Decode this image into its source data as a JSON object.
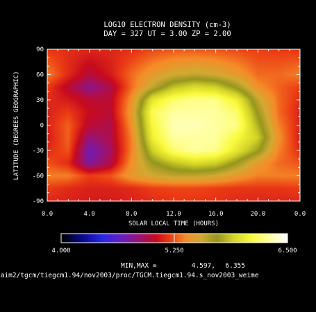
{
  "chart_data": {
    "type": "heatmap",
    "title": "LOG10 ELECTRON DENSITY (cm-3)",
    "subtitle": "DAY = 327   UT =   3.00   ZP =    2.00",
    "xlabel": "SOLAR LOCAL TIME (HOURS)",
    "ylabel": "LATITUDE (DEGREES GEOGRAPHIC)",
    "x_ticks": [
      "0.0",
      "4.0",
      "8.0",
      "12.0",
      "16.0",
      "20.0",
      "0.0"
    ],
    "y_ticks": [
      "90",
      "60",
      "30",
      "0",
      "-30",
      "-60",
      "-90"
    ],
    "xlim": [
      0,
      24
    ],
    "ylim": [
      -90,
      90
    ],
    "colorbar": {
      "min_label": "4.000",
      "mid_label": "5.250",
      "max_label": "6.500",
      "range": [
        4.0,
        6.5
      ]
    },
    "minmax_label": "MIN,MAX =",
    "min_value": "4.597,",
    "max_value": "6.355",
    "file_path": "/aim2/tgcm/tiegcm1.94/nov2003/proc/TGCM.tiegcm1.94.s_nov2003_weime",
    "field": {
      "lt_hours": [
        0,
        2,
        4,
        6,
        8,
        10,
        12,
        14,
        16,
        18,
        20,
        22,
        24
      ],
      "latitudes": [
        90,
        60,
        45,
        30,
        15,
        0,
        -15,
        -30,
        -45,
        -60,
        -75,
        -90
      ],
      "values": [
        [
          5.18,
          5.16,
          5.14,
          5.14,
          5.16,
          5.22,
          5.25,
          5.25,
          5.24,
          5.22,
          5.2,
          5.19,
          5.18
        ],
        [
          5.35,
          5.15,
          4.98,
          5.1,
          5.3,
          5.45,
          5.55,
          5.6,
          5.55,
          5.45,
          5.3,
          5.3,
          5.35
        ],
        [
          5.2,
          5.0,
          4.8,
          4.95,
          5.3,
          5.6,
          5.85,
          5.95,
          5.9,
          5.7,
          5.4,
          5.28,
          5.2
        ],
        [
          5.15,
          5.1,
          5.0,
          5.0,
          5.4,
          6.0,
          6.2,
          6.25,
          6.25,
          6.05,
          5.6,
          5.3,
          5.15
        ],
        [
          5.12,
          5.2,
          5.05,
          5.0,
          5.45,
          6.15,
          6.3,
          6.3,
          6.3,
          6.2,
          5.7,
          5.3,
          5.12
        ],
        [
          5.12,
          5.28,
          5.0,
          4.95,
          5.4,
          6.1,
          6.35,
          6.35,
          6.3,
          6.25,
          5.8,
          5.35,
          5.12
        ],
        [
          5.1,
          5.28,
          4.85,
          4.95,
          5.35,
          6.05,
          6.3,
          6.3,
          6.3,
          6.1,
          5.9,
          5.4,
          5.1
        ],
        [
          5.15,
          5.25,
          4.7,
          4.9,
          5.35,
          5.9,
          6.2,
          6.3,
          6.25,
          6.0,
          5.75,
          5.35,
          5.15
        ],
        [
          5.25,
          5.15,
          4.75,
          4.95,
          5.4,
          5.7,
          5.85,
          5.95,
          5.9,
          5.7,
          5.45,
          5.3,
          5.25
        ],
        [
          5.35,
          5.35,
          5.2,
          5.25,
          5.45,
          5.55,
          5.6,
          5.6,
          5.55,
          5.45,
          5.35,
          5.35,
          5.35
        ],
        [
          5.2,
          5.15,
          5.12,
          5.12,
          5.15,
          5.2,
          5.22,
          5.22,
          5.2,
          5.18,
          5.18,
          5.18,
          5.2
        ],
        [
          5.14,
          5.12,
          5.1,
          5.1,
          5.12,
          5.16,
          5.18,
          5.18,
          5.17,
          5.15,
          5.14,
          5.14,
          5.14
        ]
      ]
    },
    "grid": false
  }
}
